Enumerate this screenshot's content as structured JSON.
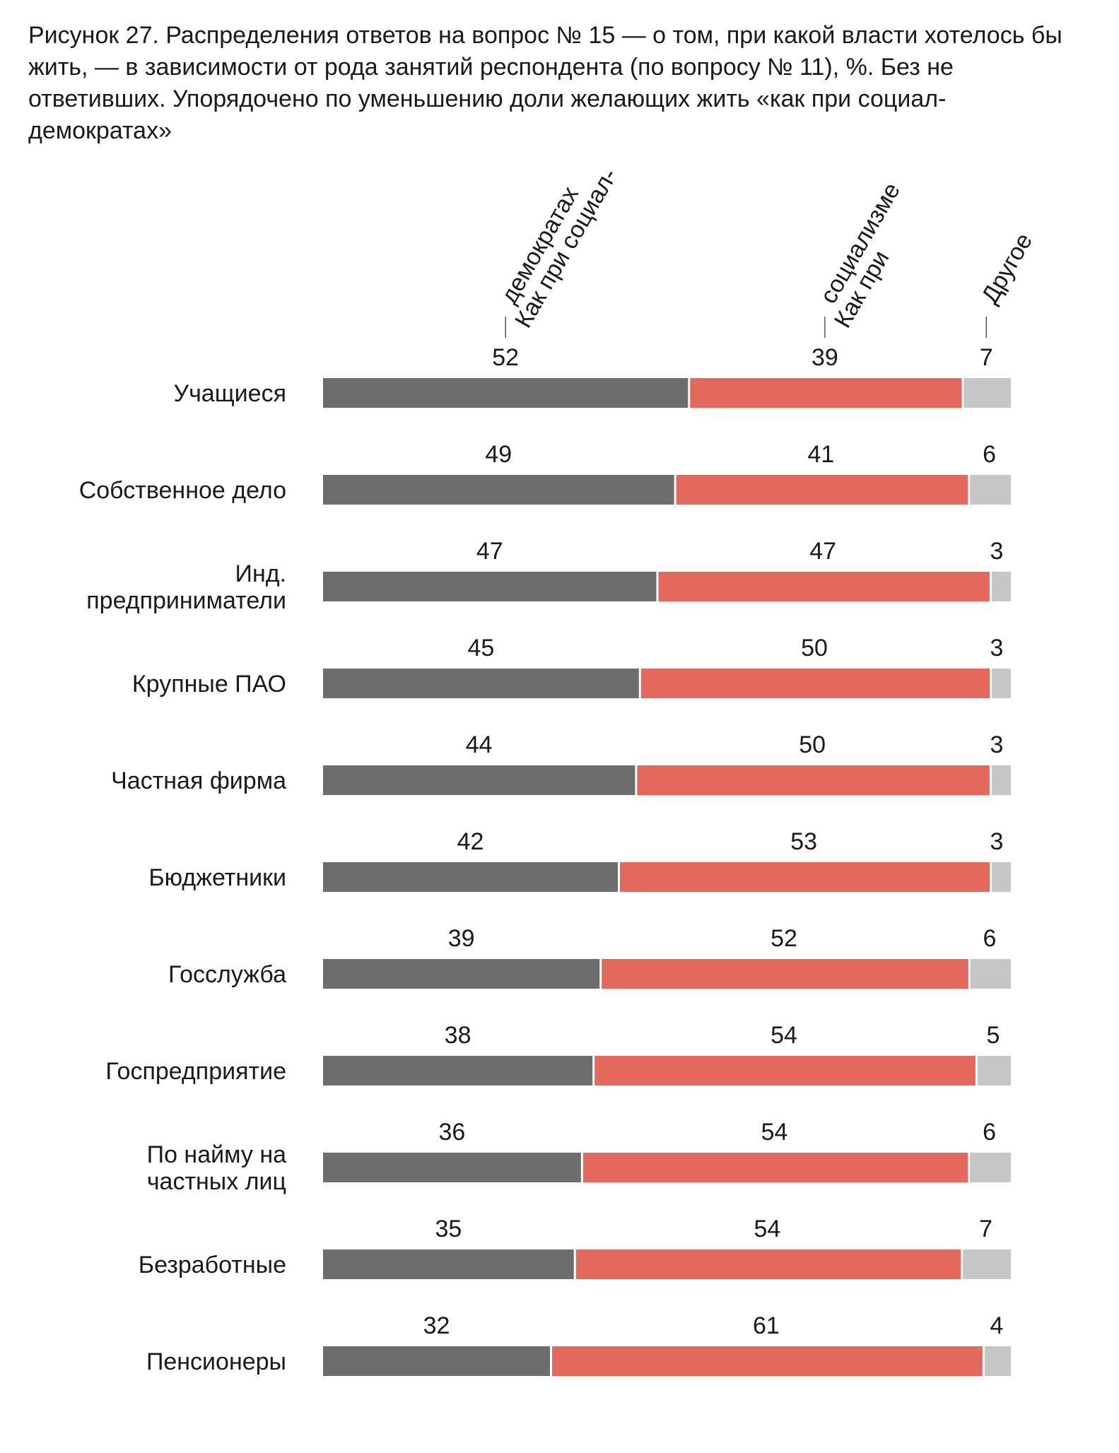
{
  "caption": "Рисунок 27. Распределения ответов на вопрос № 15 — о том, при какой власти хотелось бы жить, — в зависимости от рода занятий респондента (по вопросу № 11), %. Без не ответивших. Упорядочено по уменьшению доли желающих жить «как при социал-демократах»",
  "chart_data": {
    "type": "bar",
    "orientation": "horizontal",
    "stacked": true,
    "title": "Рисунок 27. Распределения ответов на вопрос № 15 — о том, при какой власти хотелось бы жить, — в зависимости от рода занятий респондента (по вопросу № 11), %. Без не ответивших. Упорядочено по уменьшению доли желающих жить «как при социал-демократах»",
    "categories": [
      [
        "Учащиеся"
      ],
      [
        "Собственное дело"
      ],
      [
        "Инд.",
        "предприниматели"
      ],
      [
        "Крупные ПАО"
      ],
      [
        "Частная фирма"
      ],
      [
        "Бюджетники"
      ],
      [
        "Госслужба"
      ],
      [
        "Госпредприятие"
      ],
      [
        "По найму на",
        "частных лиц"
      ],
      [
        "Безработные"
      ],
      [
        "Пенсионеры"
      ]
    ],
    "series": [
      {
        "name": [
          "Как при социал-",
          "демократах"
        ],
        "color": "#6d6d6d",
        "values": [
          52,
          49,
          47,
          45,
          44,
          42,
          39,
          38,
          36,
          35,
          32
        ]
      },
      {
        "name": [
          "Как при",
          "социализме"
        ],
        "color": "#e4685c",
        "values": [
          39,
          41,
          47,
          50,
          50,
          53,
          52,
          54,
          54,
          54,
          61
        ]
      },
      {
        "name": [
          "Другое"
        ],
        "color": "#c6c6c6",
        "values": [
          7,
          6,
          3,
          3,
          3,
          3,
          6,
          5,
          6,
          7,
          4
        ]
      }
    ],
    "unit": "%",
    "grid": false,
    "legend": "top, rotated column headers"
  }
}
